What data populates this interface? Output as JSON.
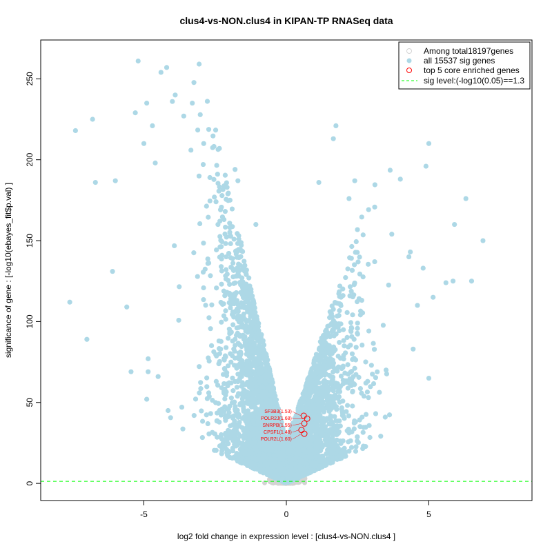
{
  "chart_data": {
    "type": "scatter",
    "title": "clus4-vs-NON.clus4 in KIPAN-TP RNASeq data",
    "xlabel": "log2 fold change in expression level : [clus4-vs-NON.clus4 ]",
    "ylabel": "significance of gene : [-log10(ebayes_fit$p.val) ]",
    "xlim": [
      -8.62,
      8.62
    ],
    "ylim": [
      -10.6,
      274
    ],
    "xticks": [
      -5,
      0,
      5
    ],
    "xtick_labels": [
      "-5",
      "0",
      "5"
    ],
    "yticks": [
      0,
      50,
      100,
      150,
      200,
      250
    ],
    "ytick_labels": [
      "0",
      "50",
      "100",
      "150",
      "200",
      "250"
    ],
    "grid": false,
    "legend": {
      "placement": "top-right",
      "entries": [
        "Among total18197genes",
        "all 15537 sig genes",
        "top 5 core enriched genes",
        "sig level:(-log10(0.05)==1.3"
      ]
    },
    "sig_level": 1.3,
    "colors": {
      "all": "#d3d3d3",
      "sig": "#add8e6",
      "top": "#ff0000",
      "sig_line": "#00ff00"
    },
    "total_genes": 18197,
    "sig_genes": 15537,
    "outlier_points": [
      [
        -7.6,
        112
      ],
      [
        -7.4,
        218
      ],
      [
        -6.8,
        225
      ],
      [
        -6.7,
        186
      ],
      [
        -6.0,
        187
      ],
      [
        -6.1,
        131
      ],
      [
        -5.6,
        109
      ],
      [
        -7.0,
        89
      ],
      [
        -5.45,
        69
      ],
      [
        -5.2,
        261
      ],
      [
        -4.2,
        257
      ],
      [
        -4.4,
        254
      ],
      [
        -5.3,
        229
      ],
      [
        -4.9,
        235
      ],
      [
        -2.4,
        160
      ],
      [
        -1.07,
        160
      ],
      [
        1.65,
        213
      ],
      [
        1.14,
        186
      ],
      [
        2.4,
        187
      ],
      [
        2.2,
        176
      ],
      [
        4.0,
        188
      ],
      [
        4.9,
        196
      ],
      [
        5.0,
        210
      ],
      [
        6.3,
        176
      ],
      [
        5.6,
        124
      ],
      [
        6.9,
        150
      ],
      [
        5.9,
        160
      ],
      [
        6.5,
        125
      ],
      [
        5.15,
        115
      ],
      [
        5.0,
        65
      ],
      [
        4.35,
        143
      ],
      [
        3.1,
        137
      ],
      [
        3.7,
        154
      ],
      [
        1.74,
        221
      ],
      [
        -4.85,
        69
      ],
      [
        -4.9,
        52
      ],
      [
        -4.85,
        77
      ],
      [
        -4.15,
        45
      ],
      [
        -4.5,
        66
      ],
      [
        -3.9,
        240
      ],
      [
        -4.0,
        236
      ],
      [
        -4.7,
        221
      ],
      [
        -3.3,
        235
      ],
      [
        -3.6,
        227
      ],
      [
        -5.0,
        210
      ],
      [
        -4.6,
        198
      ],
      [
        -2.9,
        210
      ],
      [
        -1.8,
        194
      ],
      [
        -1.7,
        187
      ],
      [
        4.8,
        133
      ],
      [
        4.3,
        140
      ],
      [
        4.6,
        110
      ],
      [
        4.45,
        83
      ],
      [
        5.85,
        125
      ]
    ],
    "top_genes": [
      {
        "label": "SF3B3(1.53)",
        "x": 0.61,
        "y": 41.8
      },
      {
        "label": "POLR2J(1.68)",
        "x": 0.73,
        "y": 40
      },
      {
        "label": "SNRPB(1.55)",
        "x": 0.63,
        "y": 37
      },
      {
        "label": "CPSF1(1.48)",
        "x": 0.53,
        "y": 33
      },
      {
        "label": "POLR2L(1.60)",
        "x": 0.63,
        "y": 30.7
      }
    ]
  }
}
